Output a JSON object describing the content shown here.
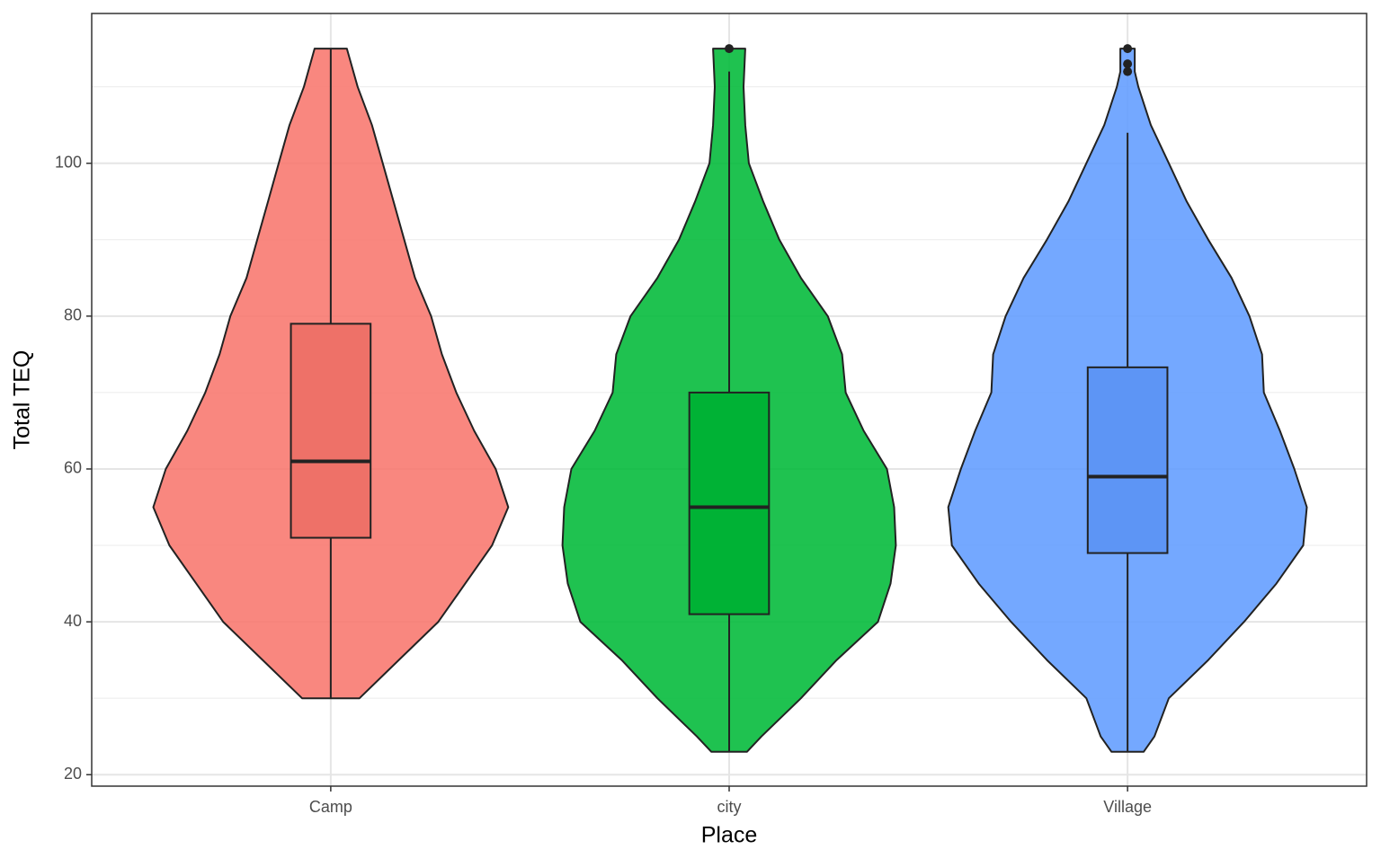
{
  "chart_data": {
    "type": "violin",
    "x_label": "Place",
    "y_label": "Total TEQ",
    "categories": [
      "Camp",
      "city",
      "Village"
    ],
    "series": [
      {
        "color": "#F8766D",
        "violin": {
          "y": [
            115,
            110,
            105,
            100,
            95,
            90,
            85,
            80,
            75,
            70,
            65,
            60,
            55,
            50,
            45,
            40,
            35,
            30
          ],
          "width": [
            0.09,
            0.15,
            0.23,
            0.29,
            0.35,
            0.41,
            0.47,
            0.56,
            0.62,
            0.7,
            0.8,
            0.92,
            0.99,
            0.9,
            0.75,
            0.6,
            0.38,
            0.16
          ]
        },
        "box": {
          "min": 30,
          "q1": 51,
          "median": 61,
          "q3": 79,
          "max": 115
        },
        "outliers": []
      },
      {
        "color": "#00BA38",
        "violin": {
          "y": [
            115,
            110,
            105,
            100,
            95,
            90,
            85,
            80,
            75,
            70,
            65,
            60,
            55,
            50,
            45,
            40,
            35,
            30,
            25,
            23
          ],
          "width": [
            0.09,
            0.08,
            0.09,
            0.11,
            0.19,
            0.28,
            0.4,
            0.55,
            0.63,
            0.65,
            0.75,
            0.88,
            0.92,
            0.93,
            0.9,
            0.83,
            0.6,
            0.4,
            0.18,
            0.1
          ]
        },
        "box": {
          "min": 23,
          "q1": 41,
          "median": 55,
          "q3": 70,
          "max": 112
        },
        "outliers": [
          115
        ]
      },
      {
        "color": "#619CFF",
        "violin": {
          "y": [
            115,
            112,
            110,
            105,
            100,
            95,
            90,
            85,
            80,
            75,
            70,
            65,
            60,
            55,
            50,
            45,
            40,
            35,
            30,
            25,
            23
          ],
          "width": [
            0.04,
            0.04,
            0.06,
            0.13,
            0.23,
            0.33,
            0.45,
            0.58,
            0.68,
            0.75,
            0.76,
            0.85,
            0.93,
            1.0,
            0.98,
            0.83,
            0.65,
            0.45,
            0.23,
            0.15,
            0.09
          ]
        },
        "box": {
          "min": 23,
          "q1": 49,
          "median": 59,
          "q3": 73.3,
          "max": 104
        },
        "outliers": [
          115,
          113,
          112
        ]
      }
    ],
    "ylim": [
      18.5,
      119.6
    ],
    "yticks": [
      20,
      40,
      60,
      80,
      100
    ],
    "minor_yticks": [
      30,
      50,
      70,
      90,
      110
    ],
    "grid": true
  }
}
